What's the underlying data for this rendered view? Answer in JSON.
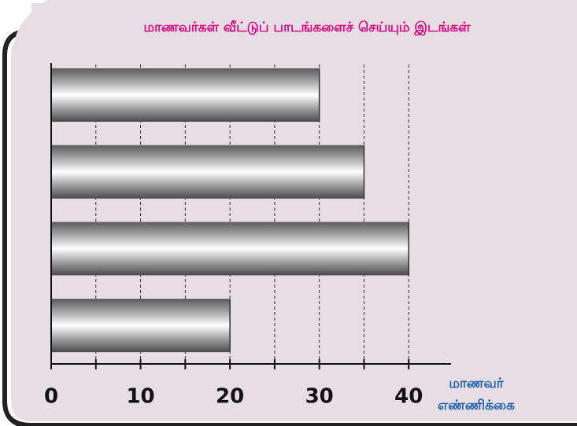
{
  "chart_data": {
    "type": "bar",
    "orientation": "horizontal",
    "title": "மாணவர்கள் வீட்டுப் பாடங்களைச் செய்யும் இடங்கள்",
    "categories": [
      null,
      null,
      null,
      null
    ],
    "values": [
      30,
      35,
      40,
      20
    ],
    "xlim": [
      0,
      45
    ],
    "xticks": [
      0,
      10,
      20,
      30,
      40
    ],
    "minor_xticks": [
      5,
      15,
      25,
      35
    ],
    "grid": true,
    "xlabel": [
      "மாணவர்",
      "எண்ணிக்கை"
    ]
  }
}
